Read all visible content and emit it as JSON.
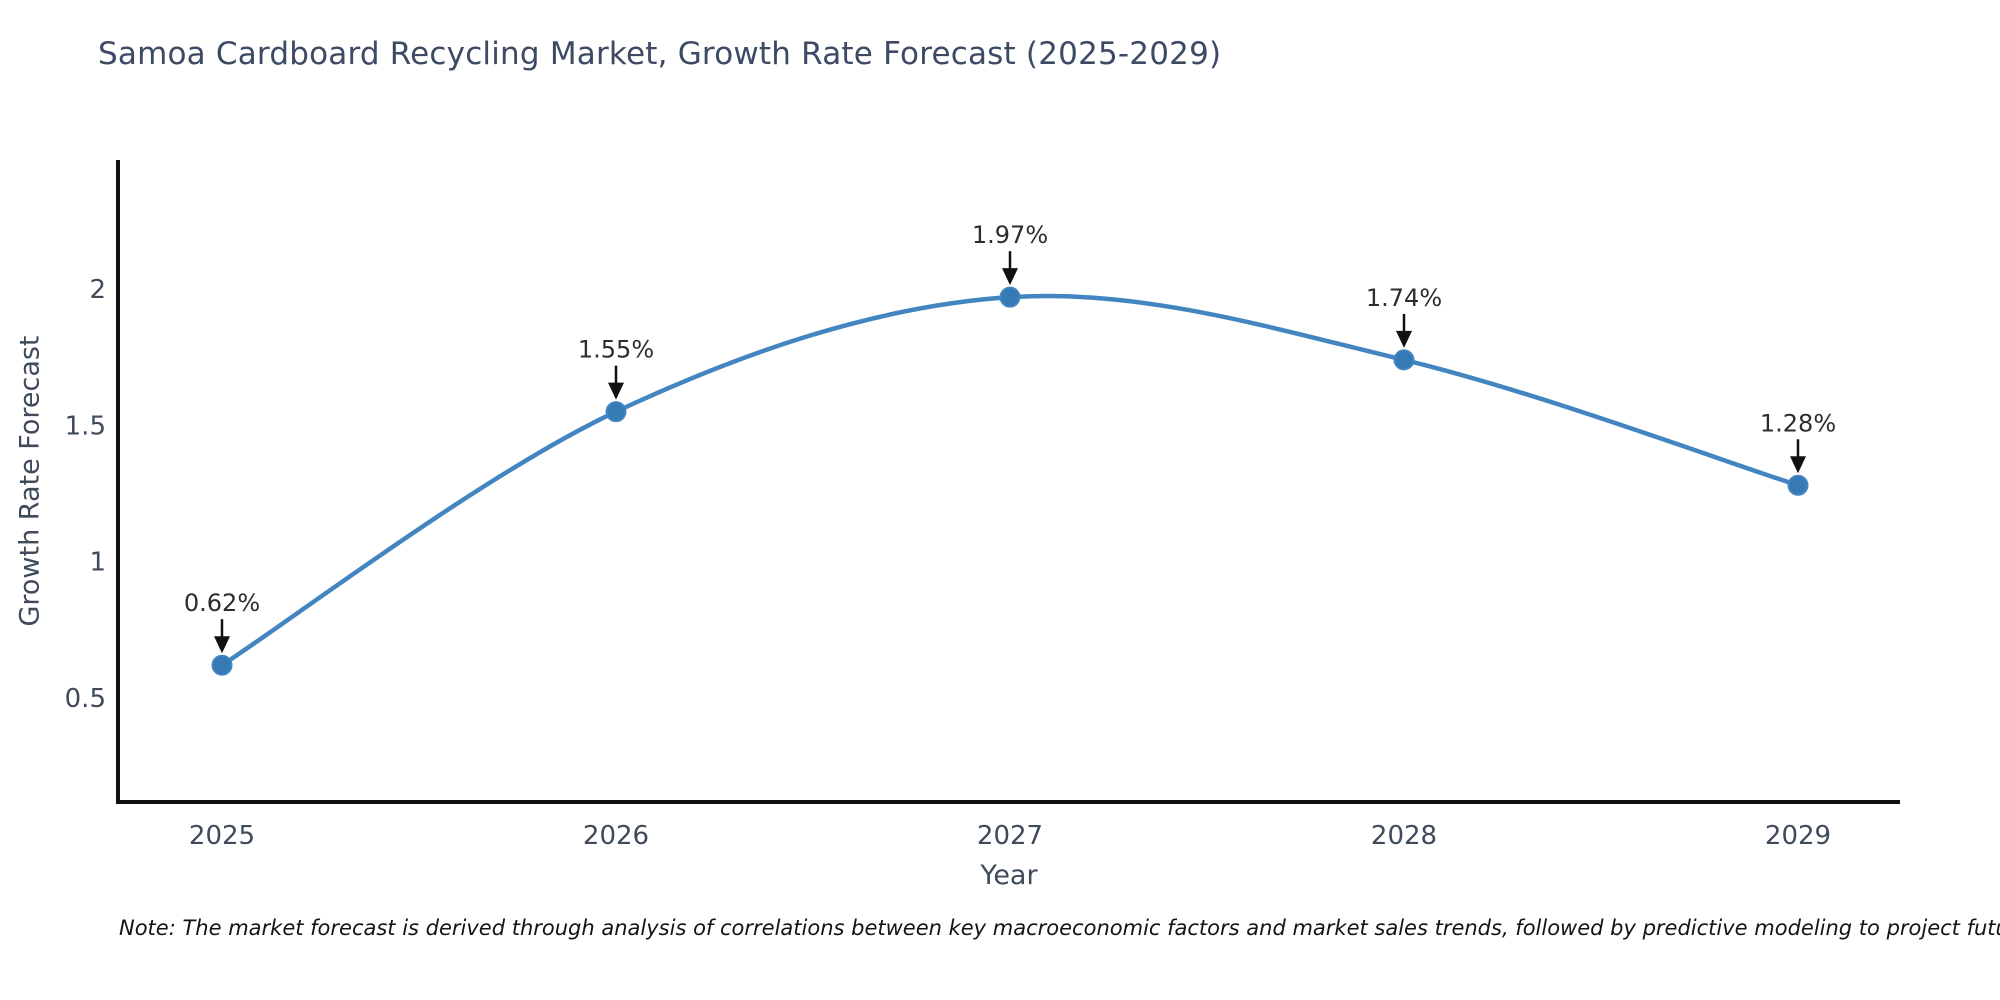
{
  "chart_data": {
    "type": "line",
    "title": "Samoa Cardboard Recycling Market, Growth Rate Forecast (2025-2029)",
    "xlabel": "Year",
    "ylabel": "Growth Rate Forecast",
    "categories": [
      "2025",
      "2026",
      "2027",
      "2028",
      "2029"
    ],
    "series": [
      {
        "name": "Growth Rate Forecast",
        "values": [
          0.62,
          1.55,
          1.97,
          1.74,
          1.28
        ],
        "point_labels": [
          "0.62%",
          "1.55%",
          "1.97%",
          "1.74%",
          "1.28%"
        ]
      }
    ],
    "yticks": [
      0.5,
      1,
      1.5,
      2
    ],
    "ylim": [
      0.12,
      2.47
    ],
    "grid": false,
    "legend": "none",
    "colors": {
      "line": "#4285c0",
      "marker": "#3579b5",
      "spine": "#111111",
      "annotation_arrow": "#111111",
      "title_text": "#3c4a63",
      "tick_text": "#3f4a5a"
    },
    "note": "Note: The market forecast is derived through analysis of correlations between key macroeconomic factors and market sales trends, followed by predictive modeling to project future sales"
  }
}
